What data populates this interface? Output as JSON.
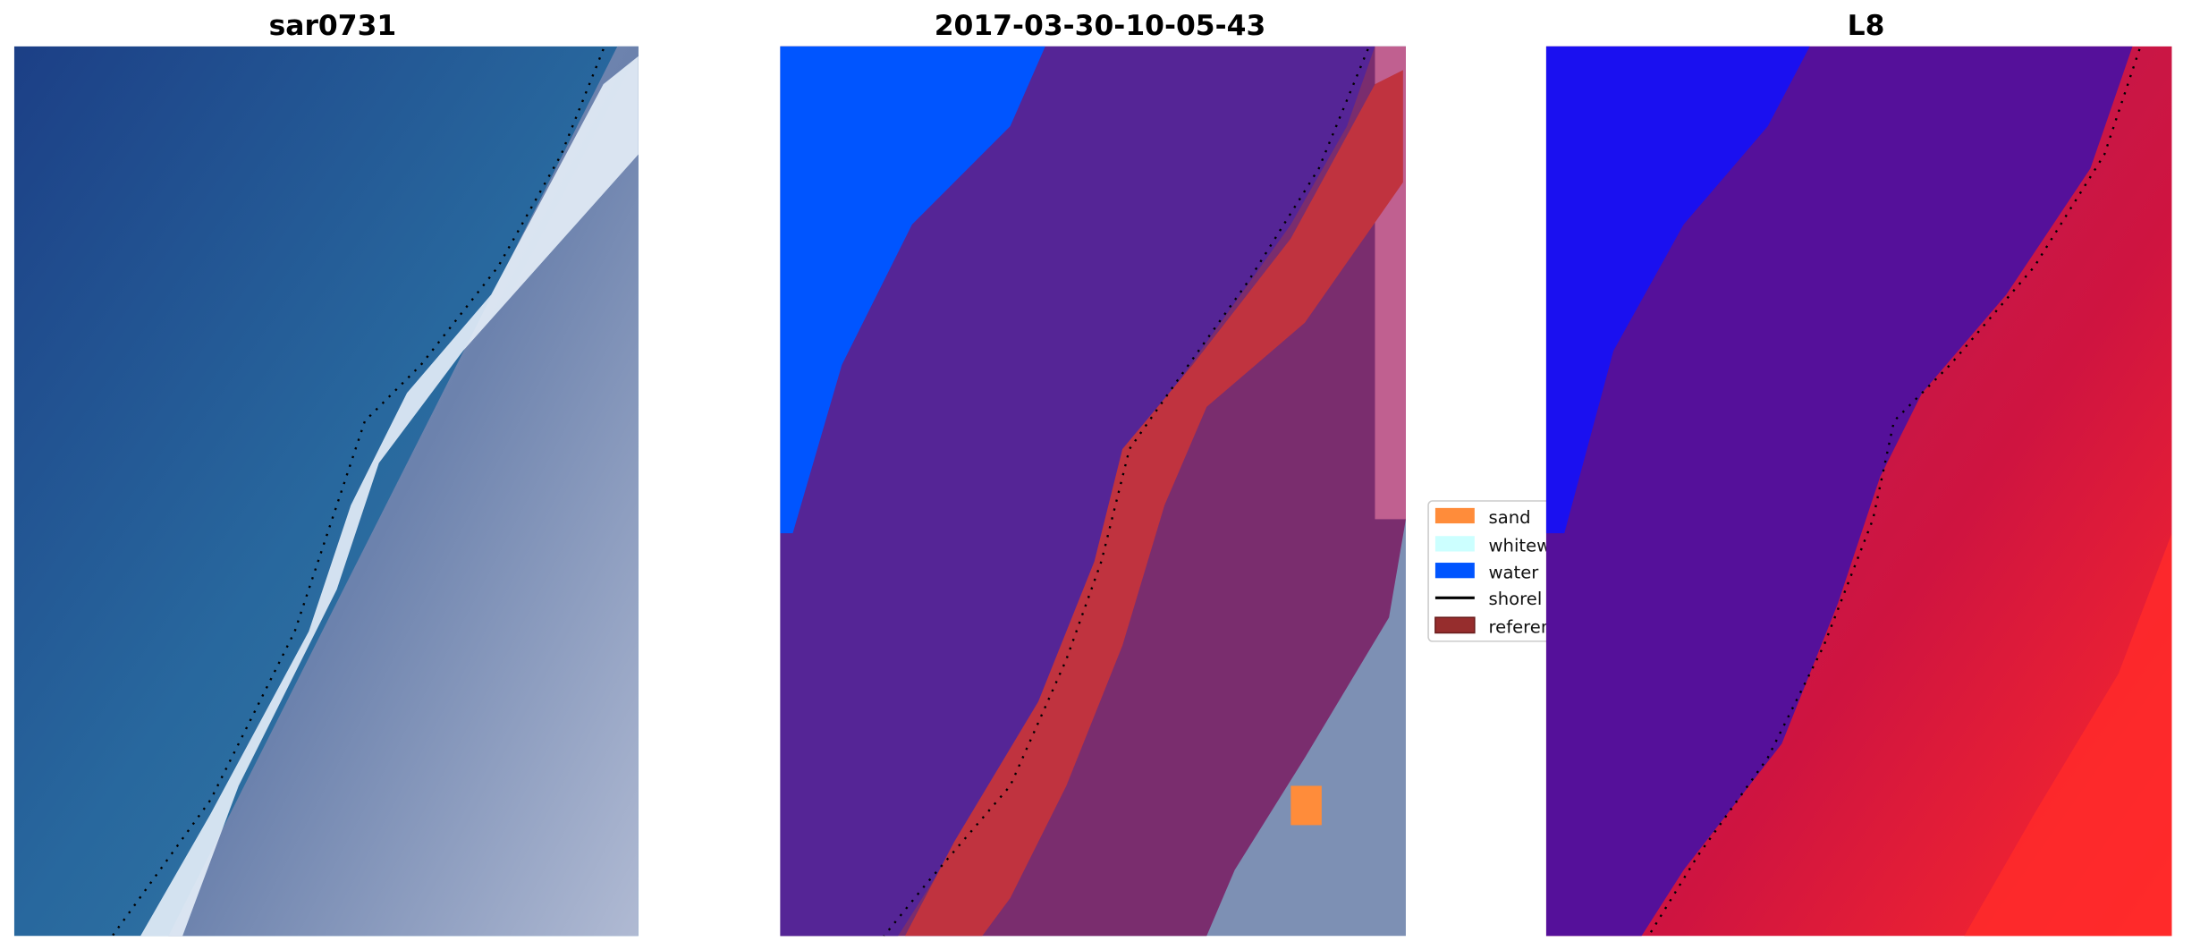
{
  "panels": [
    {
      "title": "sar0731"
    },
    {
      "title": "2017-03-30-10-05-43"
    },
    {
      "title": "L8"
    }
  ],
  "legend": {
    "items": [
      {
        "label": "sand",
        "color": "#ff8c3a",
        "type": "patch"
      },
      {
        "label": "whitew",
        "color": "#ccffff",
        "type": "patch"
      },
      {
        "label": "water",
        "color": "#0055ff",
        "type": "patch"
      },
      {
        "label": "shorel",
        "color": "#000000",
        "type": "line"
      },
      {
        "label": "referen",
        "color": "#962d2d",
        "type": "patch"
      }
    ]
  },
  "colors": {
    "ocean": "#1f5a94",
    "surf": "#e8f0fa",
    "land": "#7d90b4",
    "water_class": "#0055ff",
    "sea_purple": "#552596",
    "reference_red": "#c0333f",
    "l8_blue": "#1a10f0",
    "l8_red": "#d01040"
  }
}
